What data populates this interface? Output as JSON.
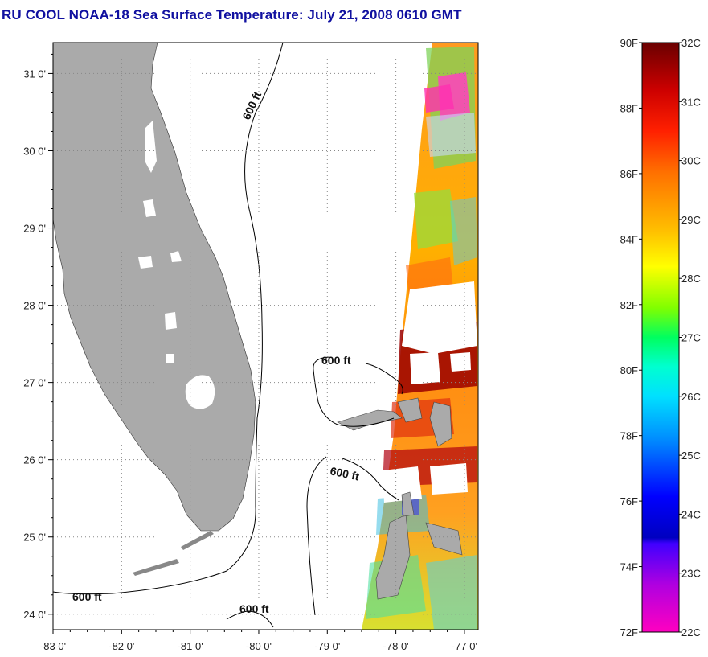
{
  "title": "RU COOL  NOAA-18  Sea Surface Temperature:  July 21, 2008 0610 GMT",
  "map": {
    "lon_range": [
      -83,
      -76.8
    ],
    "lat_range": [
      23.8,
      31.4
    ],
    "lat_ticks": [
      {
        "value": 31,
        "label": "31 0'"
      },
      {
        "value": 30,
        "label": "30 0'"
      },
      {
        "value": 29,
        "label": "29 0'"
      },
      {
        "value": 28,
        "label": "28 0'"
      },
      {
        "value": 27,
        "label": "27 0'"
      },
      {
        "value": 26,
        "label": "26 0'"
      },
      {
        "value": 25,
        "label": "25 0'"
      },
      {
        "value": 24,
        "label": "24 0'"
      }
    ],
    "lon_ticks": [
      {
        "value": -83,
        "label": "-83 0'"
      },
      {
        "value": -82,
        "label": "-82 0'"
      },
      {
        "value": -81,
        "label": "-81 0'"
      },
      {
        "value": -80,
        "label": "-80 0'"
      },
      {
        "value": -79,
        "label": "-79 0'"
      },
      {
        "value": -78,
        "label": "-78 0'"
      },
      {
        "value": -77,
        "label": "-77 0'"
      }
    ],
    "contour_labels": [
      "600 ft",
      "600 ft",
      "600 ft",
      "600 ft",
      "600 ft"
    ],
    "colors": {
      "land": "#aaaaaa",
      "cloud": "#ffffff",
      "frame": "#000000"
    }
  },
  "colorbar": {
    "fahrenheit_labels": [
      "90F",
      "88F",
      "86F",
      "84F",
      "82F",
      "80F",
      "78F",
      "76F",
      "74F",
      "72F"
    ],
    "celsius_labels": [
      "32C",
      "31C",
      "30C",
      "29C",
      "28C",
      "27C",
      "26C",
      "25C",
      "24C",
      "23C",
      "22C"
    ],
    "range_c": [
      22,
      32
    ],
    "stops": [
      {
        "c": 32,
        "color": "#6a0000"
      },
      {
        "c": 31.2,
        "color": "#cc0000"
      },
      {
        "c": 30.5,
        "color": "#ff2000"
      },
      {
        "c": 29.8,
        "color": "#ff7000"
      },
      {
        "c": 28.8,
        "color": "#ffc000"
      },
      {
        "c": 28.2,
        "color": "#ffff00"
      },
      {
        "c": 27.5,
        "color": "#80ff00"
      },
      {
        "c": 27,
        "color": "#00ff60"
      },
      {
        "c": 26.5,
        "color": "#00ffd0"
      },
      {
        "c": 26,
        "color": "#00e0ff"
      },
      {
        "c": 25.3,
        "color": "#0090ff"
      },
      {
        "c": 24.3,
        "color": "#0000ff"
      },
      {
        "c": 23.6,
        "color": "#0000c0"
      },
      {
        "c": 23.5,
        "color": "#4000ff"
      },
      {
        "c": 22.8,
        "color": "#b000e0"
      },
      {
        "c": 22,
        "color": "#ff00c0"
      }
    ]
  }
}
